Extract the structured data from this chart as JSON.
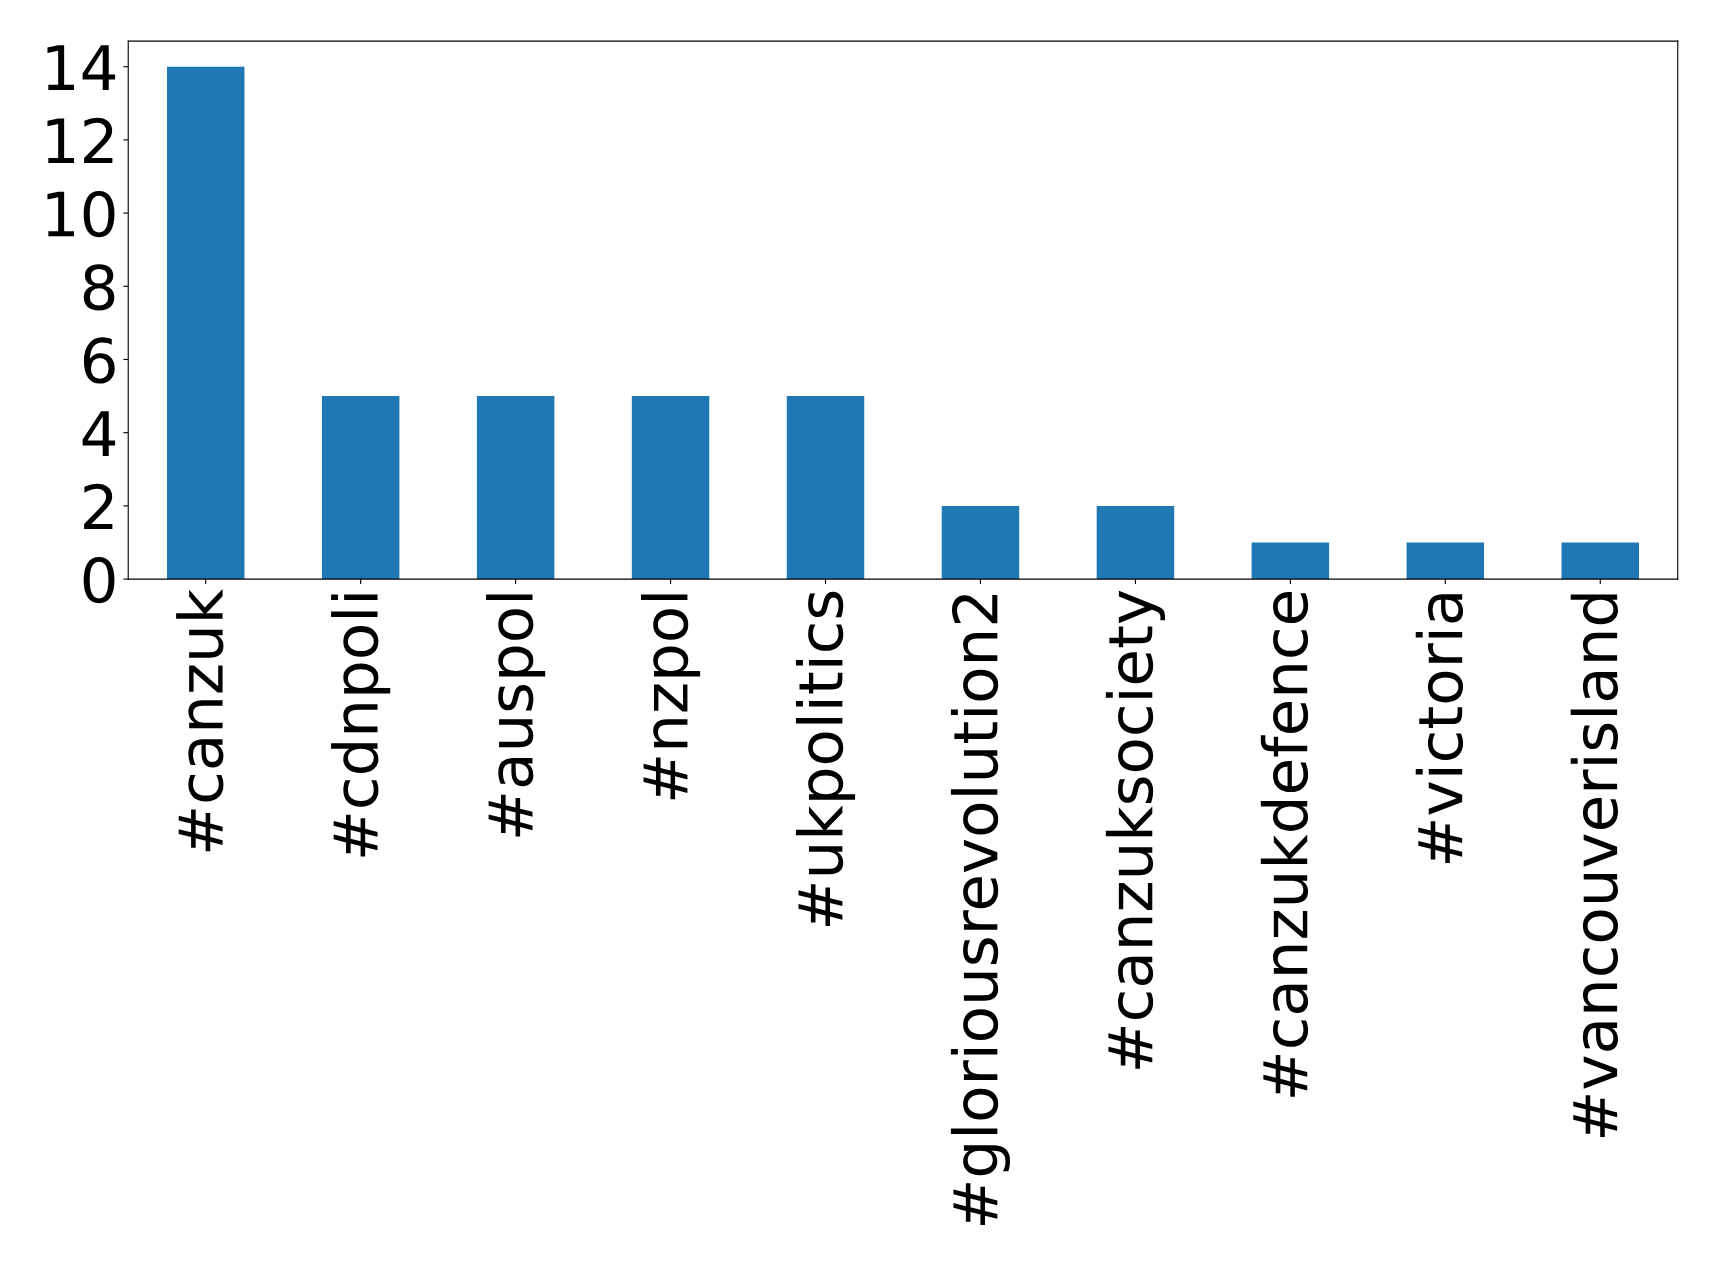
{
  "chart_data": {
    "type": "bar",
    "categories": [
      "#canzuk",
      "#cdnpoli",
      "#auspol",
      "#nzpol",
      "#ukpolitics",
      "#gloriousrevolution2",
      "#canzuksociety",
      "#canzukdefence",
      "#victoria",
      "#vancouverisland"
    ],
    "values": [
      14,
      5,
      5,
      5,
      5,
      2,
      2,
      1,
      1,
      1
    ],
    "color": "#1f77b4",
    "ylim": [
      0,
      14.7
    ],
    "yticks": [
      0,
      2,
      4,
      6,
      8,
      10,
      12,
      14
    ],
    "grid": false
  }
}
